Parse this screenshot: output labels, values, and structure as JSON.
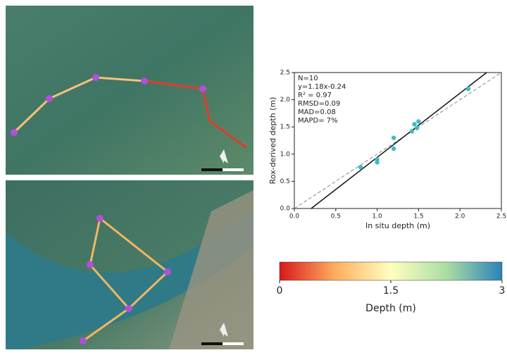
{
  "chart_data": [
    {
      "type": "scatter",
      "x": [
        0.8,
        1.0,
        1.0,
        1.2,
        1.2,
        1.42,
        1.45,
        1.48,
        1.5,
        2.1
      ],
      "values": [
        0.76,
        0.85,
        0.9,
        1.1,
        1.3,
        1.42,
        1.55,
        1.48,
        1.6,
        2.2
      ],
      "color": "#3bbdc8",
      "xlabel": "In situ depth (m)",
      "ylabel": "Rox-derived depth (m)",
      "annotations": [
        "N=10",
        "y=1.18x-0.24",
        "R² = 0.97",
        "RMSD=0.09",
        "MAD=0.08",
        "MAPD= 7%"
      ],
      "fit_line": {
        "slope": 1.18,
        "intercept": -0.24
      },
      "identity_line": true,
      "xlim": [
        0,
        2.5
      ],
      "ylim": [
        0,
        2.5
      ],
      "xticks": [
        {
          "value": 0,
          "label": "0.0"
        },
        0.5,
        {
          "value": 1,
          "label": "1.0"
        },
        1.5,
        {
          "value": 2,
          "label": "2.0"
        },
        2.5
      ],
      "yticks": [
        {
          "value": 0,
          "label": "0.0"
        },
        0.5,
        {
          "value": 1,
          "label": "1.0"
        },
        1.5,
        {
          "value": 2,
          "label": "2.0"
        },
        2.5
      ]
    },
    {
      "type": "colorbar",
      "label": "Depth (m)",
      "colors": [
        "#d7191c",
        "#fdae61",
        "#ffffbf",
        "#abdda4",
        "#2b83ba"
      ],
      "xlim": [
        0,
        3
      ],
      "xticks": [
        0,
        1.5,
        3
      ]
    }
  ]
}
